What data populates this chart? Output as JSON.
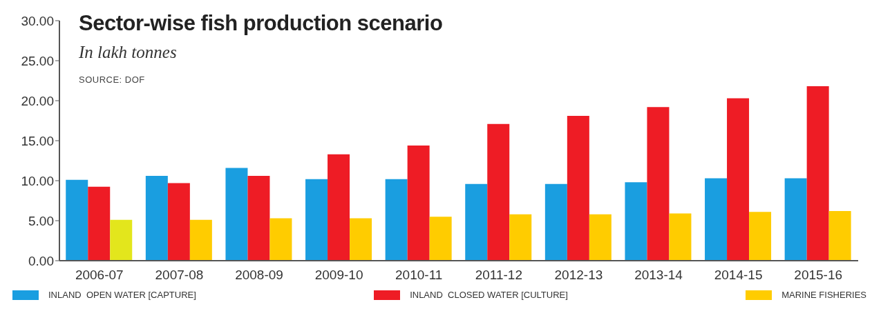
{
  "chart_data": {
    "type": "bar",
    "title": "Sector-wise fish production scenario",
    "subtitle": "In lakh tonnes",
    "annotations": [
      "SOURCE: DOF"
    ],
    "categories": [
      "2006-07",
      "2007-08",
      "2008-09",
      "2009-10",
      "2010-11",
      "2011-12",
      "2012-13",
      "2013-14",
      "2014-15",
      "2015-16"
    ],
    "series": [
      {
        "name": "INLAND  OPEN WATER [CAPTURE]",
        "color": "#1a9ee0",
        "values": [
          10.1,
          10.6,
          11.6,
          10.2,
          10.2,
          9.6,
          9.6,
          9.8,
          10.3,
          10.3
        ]
      },
      {
        "name": "INLAND  CLOSED WATER [CULTURE]",
        "color": "#ee1c25",
        "values": [
          9.25,
          9.7,
          10.6,
          13.3,
          14.4,
          17.1,
          18.1,
          19.2,
          20.3,
          21.8
        ]
      },
      {
        "name": "MARINE FISHERIES",
        "color": "#ffcc00",
        "colors": [
          "#e3e61c",
          "#ffcc00",
          "#ffcc00",
          "#ffcc00",
          "#ffcc00",
          "#ffcc00",
          "#ffcc00",
          "#ffcc00",
          "#ffcc00",
          "#ffcc00"
        ],
        "values": [
          5.1,
          5.1,
          5.3,
          5.3,
          5.5,
          5.8,
          5.8,
          5.9,
          6.1,
          6.2
        ]
      }
    ],
    "ylim": [
      0,
      30
    ],
    "yticks": [
      {
        "value": 0,
        "label": "0.00"
      },
      {
        "value": 5,
        "label": "5.00"
      },
      {
        "value": 10,
        "label": "10.00"
      },
      {
        "value": 15,
        "label": "15.00"
      },
      {
        "value": 20,
        "label": "20.00"
      },
      {
        "value": 25,
        "label": "25.00"
      },
      {
        "value": 30,
        "label": "30.00"
      }
    ],
    "grid": false,
    "legend": "bottom"
  }
}
